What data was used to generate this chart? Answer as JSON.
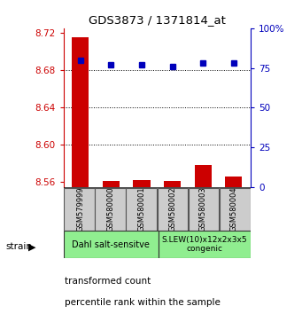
{
  "title": "GDS3873 / 1371814_at",
  "samples": [
    "GSM579999",
    "GSM580000",
    "GSM580001",
    "GSM580002",
    "GSM580003",
    "GSM580004"
  ],
  "transformed_count": [
    8.715,
    8.561,
    8.562,
    8.561,
    8.578,
    8.566
  ],
  "percentile_rank": [
    80,
    77,
    77,
    76,
    78,
    78
  ],
  "ylim_left": [
    8.555,
    8.725
  ],
  "ylim_right": [
    0,
    100
  ],
  "yticks_left": [
    8.56,
    8.6,
    8.64,
    8.68,
    8.72
  ],
  "yticks_right": [
    0,
    25,
    50,
    75,
    100
  ],
  "bar_color_red": "#CC0000",
  "marker_color_blue": "#0000BB",
  "plot_bg": "#ffffff",
  "left_axis_color": "#CC0000",
  "right_axis_color": "#0000BB",
  "legend_red_label": "transformed count",
  "legend_blue_label": "percentile rank within the sample",
  "strain_label": "strain",
  "group1_label": "Dahl salt-sensitve",
  "group2_label": "S.LEW(10)x12x2x3x5\ncongenic",
  "group1_color": "#90EE90",
  "group2_color": "#90EE90",
  "sample_box_color": "#cccccc",
  "dotted_lines": [
    8.6,
    8.64,
    8.68
  ],
  "right_tick_labels": [
    "0",
    "25",
    "50",
    "75",
    "100%"
  ]
}
